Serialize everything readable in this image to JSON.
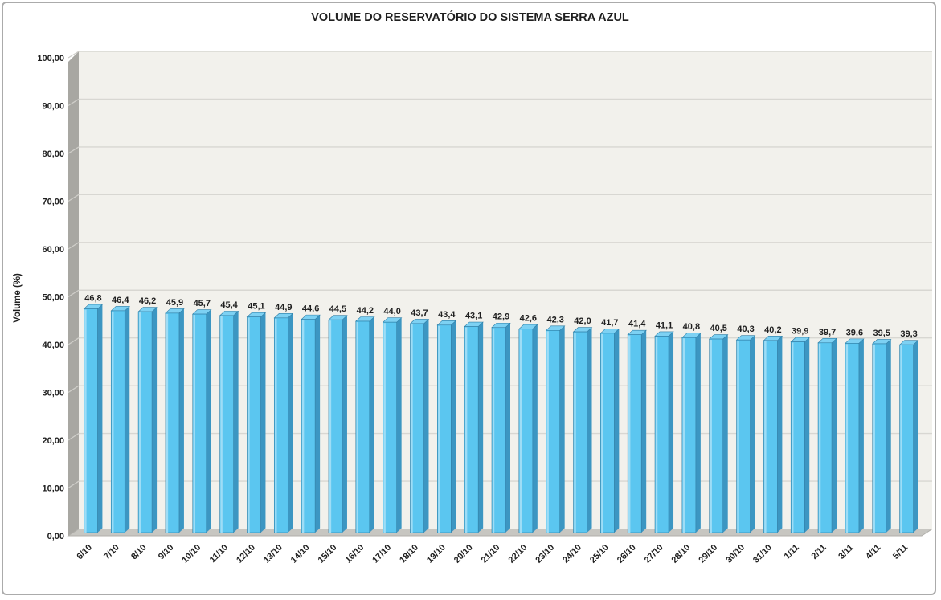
{
  "chart_data": {
    "type": "bar",
    "title": "VOLUME DO RESERVATÓRIO DO SISTEMA SERRA AZUL",
    "xlabel": "",
    "ylabel": "Volume (%)",
    "ylim": [
      0,
      100
    ],
    "y_tick_values": [
      0,
      10,
      20,
      30,
      40,
      50,
      60,
      70,
      80,
      90,
      100
    ],
    "y_tick_labels": [
      "0,00",
      "10,00",
      "20,00",
      "30,00",
      "40,00",
      "50,00",
      "60,00",
      "70,00",
      "80,00",
      "90,00",
      "100,00"
    ],
    "grid": true,
    "legend_position": "none",
    "style": "3d-column",
    "categories": [
      "6/10",
      "7/10",
      "8/10",
      "9/10",
      "10/10",
      "11/10",
      "12/10",
      "13/10",
      "14/10",
      "15/10",
      "16/10",
      "17/10",
      "18/10",
      "19/10",
      "20/10",
      "21/10",
      "22/10",
      "23/10",
      "24/10",
      "25/10",
      "26/10",
      "27/10",
      "28/10",
      "29/10",
      "30/10",
      "31/10",
      "1/11",
      "2/11",
      "3/11",
      "4/11",
      "5/11"
    ],
    "values": [
      46.8,
      46.4,
      46.2,
      45.9,
      45.7,
      45.4,
      45.1,
      44.9,
      44.6,
      44.5,
      44.2,
      44.0,
      43.7,
      43.4,
      43.1,
      42.9,
      42.6,
      42.3,
      42.0,
      41.7,
      41.4,
      41.1,
      40.8,
      40.5,
      40.3,
      40.2,
      39.9,
      39.7,
      39.6,
      39.5,
      39.3
    ],
    "value_labels": [
      "46,8",
      "46,4",
      "46,2",
      "45,9",
      "45,7",
      "45,4",
      "45,1",
      "44,9",
      "44,6",
      "44,5",
      "44,2",
      "44,0",
      "43,7",
      "43,4",
      "43,1",
      "42,9",
      "42,6",
      "42,3",
      "42,0",
      "41,7",
      "41,4",
      "41,1",
      "40,8",
      "40,5",
      "40,3",
      "40,2",
      "39,9",
      "39,7",
      "39,6",
      "39,5",
      "39,3"
    ],
    "colors": {
      "bar_front": "#5bc6f0",
      "bar_highlight": "#9eddf6",
      "bar_top": "#7dd1f3",
      "bar_side": "#3c96c2",
      "bar_outline": "#2e7da5",
      "back_wall": "#f2f1ec",
      "gridline": "#d8d7d2",
      "side_wall": "#a8a7a2",
      "side_wall_grid": "#cfcec9",
      "floor": "#c7c6c1",
      "floor_edge": "#b0afaa",
      "text": "#1f1f1f",
      "frame_border": "#ababab"
    }
  }
}
